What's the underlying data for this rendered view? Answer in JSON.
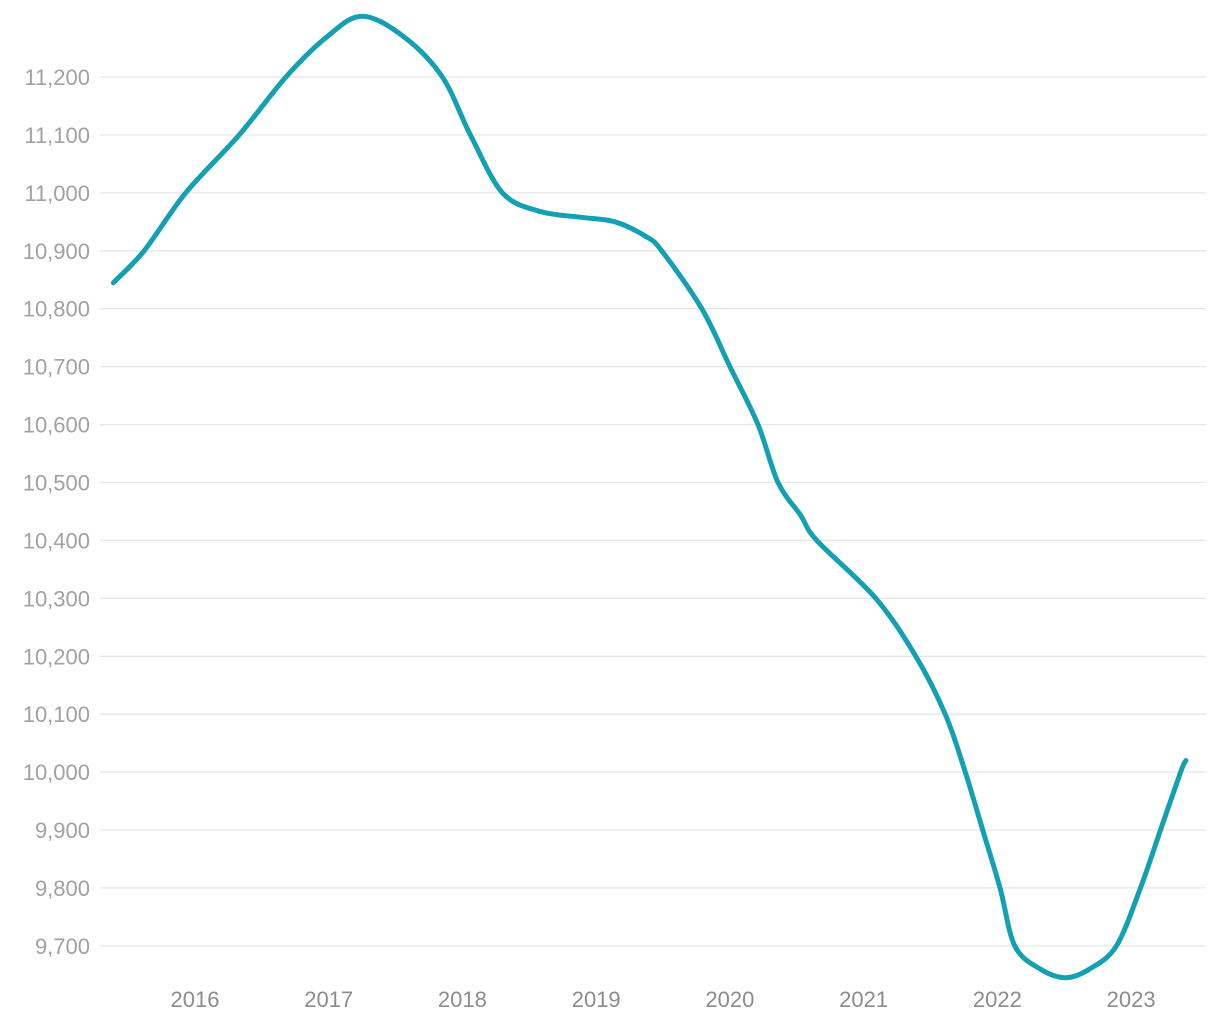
{
  "chart_data": {
    "type": "line",
    "x_ticks": [
      {
        "value": 2016,
        "label": "2016"
      },
      {
        "value": 2017,
        "label": "2017"
      },
      {
        "value": 2018,
        "label": "2018"
      },
      {
        "value": 2019,
        "label": "2019"
      },
      {
        "value": 2020,
        "label": "2020"
      },
      {
        "value": 2021,
        "label": "2021"
      },
      {
        "value": 2022,
        "label": "2022"
      },
      {
        "value": 2023,
        "label": "2023"
      }
    ],
    "y_ticks": [
      {
        "value": 11200,
        "label": "11,200"
      },
      {
        "value": 11100,
        "label": "11,100"
      },
      {
        "value": 11000,
        "label": "11,000"
      },
      {
        "value": 10900,
        "label": "10,900"
      },
      {
        "value": 10800,
        "label": "10,800"
      },
      {
        "value": 10700,
        "label": "10,700"
      },
      {
        "value": 10600,
        "label": "10,600"
      },
      {
        "value": 10500,
        "label": "10,500"
      },
      {
        "value": 10400,
        "label": "10,400"
      },
      {
        "value": 10300,
        "label": "10,300"
      },
      {
        "value": 10200,
        "label": "10,200"
      },
      {
        "value": 10100,
        "label": "10,100"
      },
      {
        "value": 10000,
        "label": "10,000"
      },
      {
        "value": 9900,
        "label": "9,900"
      },
      {
        "value": 9800,
        "label": "9,800"
      },
      {
        "value": 9700,
        "label": "9,700"
      }
    ],
    "xlim": [
      2015.29,
      2023.56
    ],
    "ylim": [
      9572,
      11333
    ],
    "grid": {
      "show": true,
      "color": "#e6e6e6"
    },
    "background": "#ffffff",
    "y_label_color": "#a1a1a1",
    "x_label_color": "#8c8c8c",
    "series": [
      {
        "color": "#14a0b3",
        "stroke_width": 5,
        "points": [
          [
            2015.39,
            10845
          ],
          [
            2015.62,
            10900
          ],
          [
            2015.93,
            11000
          ],
          [
            2016.33,
            11100
          ],
          [
            2016.68,
            11200
          ],
          [
            2016.98,
            11268
          ],
          [
            2017.25,
            11305
          ],
          [
            2017.57,
            11268
          ],
          [
            2017.85,
            11200
          ],
          [
            2018.06,
            11100
          ],
          [
            2018.3,
            11000
          ],
          [
            2018.58,
            10968
          ],
          [
            2018.88,
            10958
          ],
          [
            2019.14,
            10950
          ],
          [
            2019.37,
            10925
          ],
          [
            2019.49,
            10900
          ],
          [
            2019.79,
            10800
          ],
          [
            2020.0,
            10700
          ],
          [
            2020.21,
            10600
          ],
          [
            2020.36,
            10500
          ],
          [
            2020.53,
            10443
          ],
          [
            2020.65,
            10400
          ],
          [
            2021.09,
            10300
          ],
          [
            2021.39,
            10200
          ],
          [
            2021.61,
            10100
          ],
          [
            2021.76,
            10000
          ],
          [
            2021.89,
            9900
          ],
          [
            2022.02,
            9800
          ],
          [
            2022.13,
            9700
          ],
          [
            2022.32,
            9660
          ],
          [
            2022.51,
            9645
          ],
          [
            2022.69,
            9660
          ],
          [
            2022.89,
            9700
          ],
          [
            2023.07,
            9800
          ],
          [
            2023.22,
            9900
          ],
          [
            2023.37,
            10000
          ],
          [
            2023.41,
            10020
          ]
        ]
      }
    ]
  }
}
